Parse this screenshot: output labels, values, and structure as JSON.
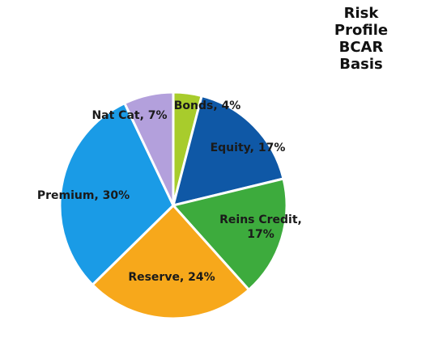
{
  "chart_data": {
    "type": "pie",
    "title": "Risk Profile\nBCAR Basis",
    "values": [
      4,
      17,
      17,
      24,
      30,
      7
    ],
    "value_labels": [
      "Bonds, 4%",
      "Equity, 17%",
      "Reins Credit,\n17%",
      "Reserve, 24%",
      "Premium, 30%",
      "Nat Cat, 7%"
    ],
    "colors": [
      "#a8cc2c",
      "#0f58a6",
      "#3dab3d",
      "#f7a81b",
      "#1a9be6",
      "#b3a0dc"
    ]
  }
}
